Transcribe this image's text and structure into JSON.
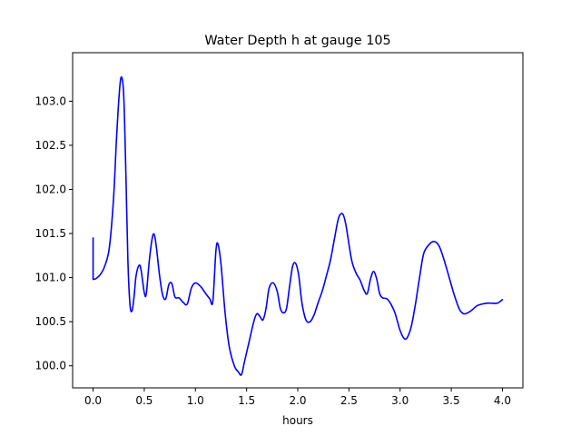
{
  "chart_data": {
    "type": "line",
    "title": "Water Depth h at gauge 105",
    "xlabel": "hours",
    "ylabel": "",
    "xlim": [
      -0.2,
      4.2
    ],
    "ylim": [
      99.75,
      103.55
    ],
    "x_ticks": [
      0.0,
      0.5,
      1.0,
      1.5,
      2.0,
      2.5,
      3.0,
      3.5,
      4.0
    ],
    "x_tick_labels": [
      "0.0",
      "0.5",
      "1.0",
      "1.5",
      "2.0",
      "2.5",
      "3.0",
      "3.5",
      "4.0"
    ],
    "y_ticks": [
      100.0,
      100.5,
      101.0,
      101.5,
      102.0,
      102.5,
      103.0
    ],
    "y_tick_labels": [
      "100.0",
      "100.5",
      "101.0",
      "101.5",
      "102.0",
      "102.5",
      "103.0"
    ],
    "grid": false,
    "legend": "none",
    "series": [
      {
        "color": "#0000ff",
        "x": [
          0.0,
          0.0,
          0.03,
          0.08,
          0.12,
          0.16,
          0.2,
          0.23,
          0.26,
          0.28,
          0.3,
          0.32,
          0.34,
          0.36,
          0.38,
          0.4,
          0.42,
          0.45,
          0.47,
          0.5,
          0.52,
          0.55,
          0.58,
          0.6,
          0.62,
          0.65,
          0.68,
          0.71,
          0.74,
          0.77,
          0.8,
          0.84,
          0.88,
          0.92,
          0.96,
          1.0,
          1.05,
          1.1,
          1.14,
          1.17,
          1.2,
          1.22,
          1.25,
          1.29,
          1.33,
          1.38,
          1.42,
          1.45,
          1.48,
          1.52,
          1.57,
          1.6,
          1.63,
          1.66,
          1.69,
          1.72,
          1.76,
          1.8,
          1.83,
          1.86,
          1.89,
          1.92,
          1.95,
          1.98,
          2.01,
          2.04,
          2.08,
          2.12,
          2.16,
          2.2,
          2.24,
          2.28,
          2.32,
          2.36,
          2.4,
          2.44,
          2.47,
          2.5,
          2.53,
          2.57,
          2.61,
          2.65,
          2.68,
          2.71,
          2.74,
          2.77,
          2.8,
          2.83,
          2.87,
          2.91,
          2.95,
          3.0,
          3.04,
          3.07,
          3.11,
          3.15,
          3.19,
          3.23,
          3.28,
          3.33,
          3.38,
          3.43,
          3.48,
          3.53,
          3.58,
          3.62,
          3.66,
          3.7,
          3.75,
          3.8,
          3.85,
          3.9,
          3.95,
          4.0
        ],
        "y": [
          101.45,
          100.98,
          100.99,
          101.05,
          101.15,
          101.35,
          101.9,
          102.6,
          103.15,
          103.27,
          103.05,
          102.2,
          101.2,
          100.7,
          100.62,
          100.78,
          101.02,
          101.14,
          101.08,
          100.83,
          100.82,
          101.2,
          101.46,
          101.48,
          101.33,
          101.02,
          100.8,
          100.76,
          100.92,
          100.93,
          100.78,
          100.77,
          100.72,
          100.7,
          100.88,
          100.94,
          100.9,
          100.82,
          100.76,
          100.73,
          101.3,
          101.38,
          101.15,
          100.6,
          100.22,
          100.0,
          99.93,
          99.9,
          100.05,
          100.25,
          100.5,
          100.59,
          100.56,
          100.52,
          100.65,
          100.88,
          100.94,
          100.84,
          100.65,
          100.6,
          100.65,
          100.9,
          101.13,
          101.16,
          101.02,
          100.72,
          100.52,
          100.5,
          100.58,
          100.72,
          100.85,
          101.02,
          101.2,
          101.45,
          101.68,
          101.72,
          101.6,
          101.38,
          101.18,
          101.05,
          100.97,
          100.85,
          100.82,
          100.98,
          101.07,
          100.99,
          100.82,
          100.77,
          100.76,
          100.7,
          100.6,
          100.4,
          100.31,
          100.32,
          100.45,
          100.7,
          101.0,
          101.27,
          101.37,
          101.41,
          101.36,
          101.2,
          101.0,
          100.8,
          100.64,
          100.59,
          100.6,
          100.63,
          100.68,
          100.7,
          100.71,
          100.71,
          100.71,
          100.75
        ]
      }
    ]
  }
}
